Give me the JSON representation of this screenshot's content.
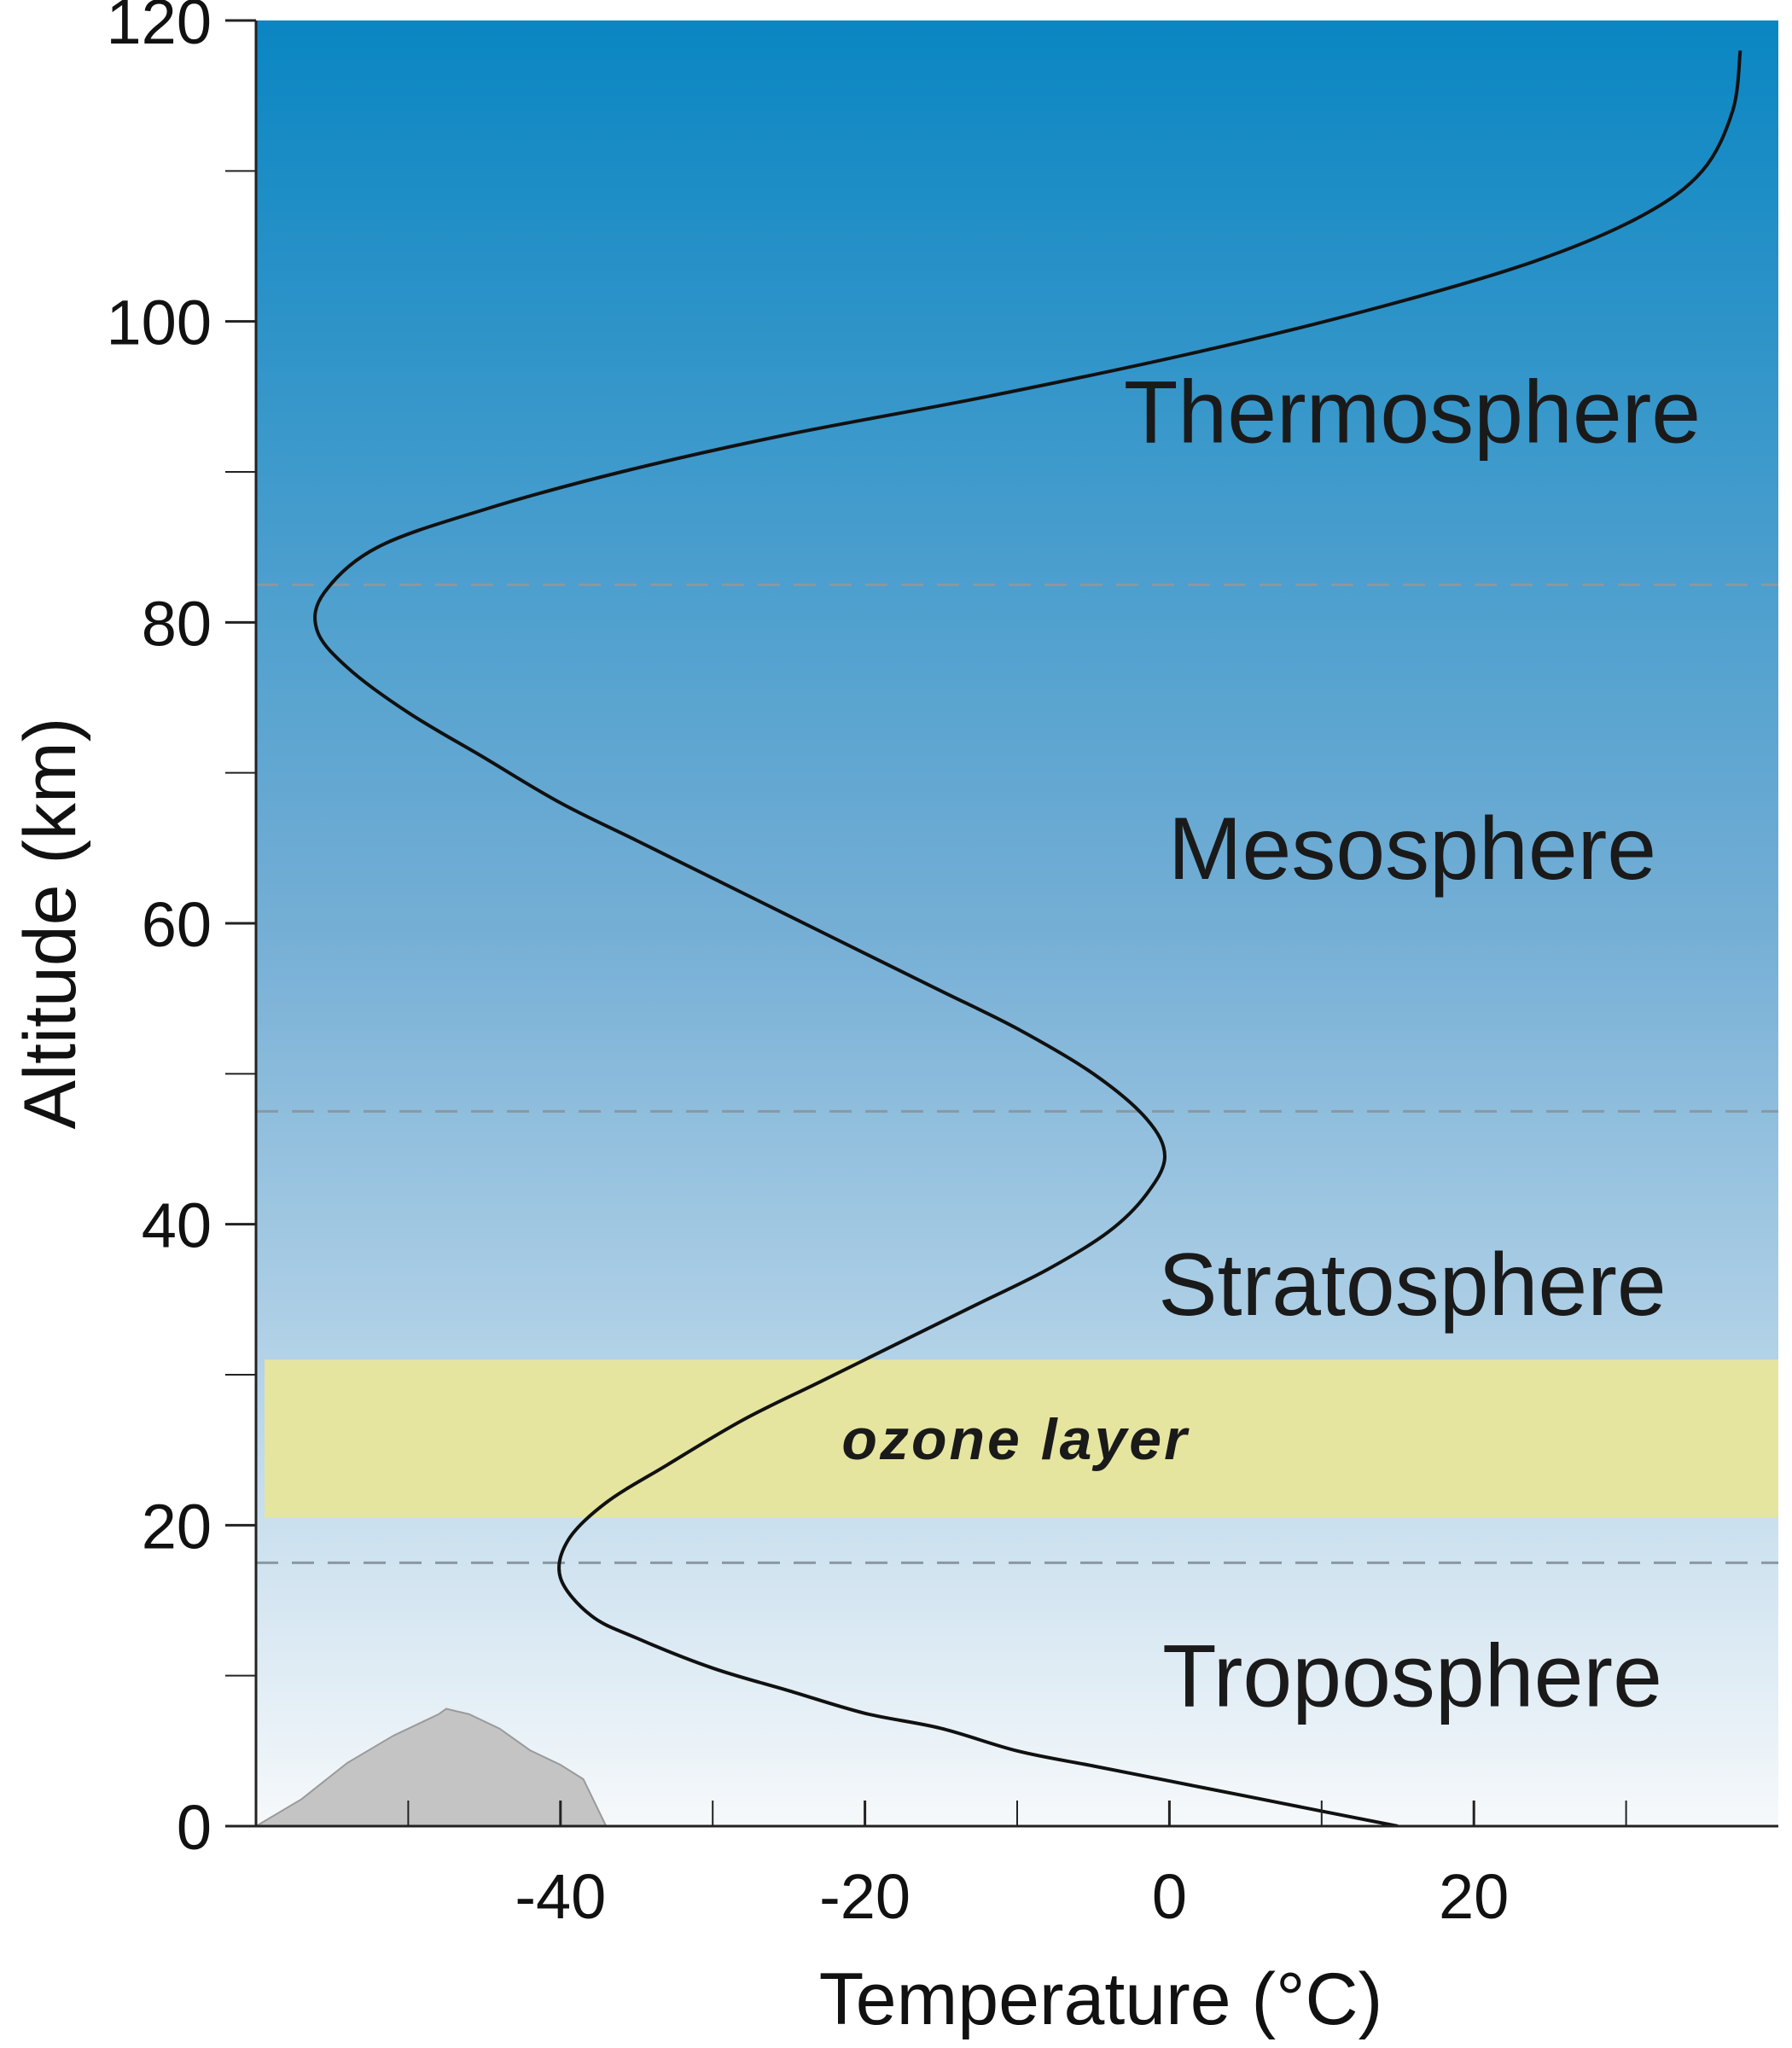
{
  "chart_data": {
    "type": "line",
    "xlabel": "Temperature (°C)",
    "ylabel": "Altitude (km)",
    "xlim": [
      -60,
      40
    ],
    "ylim": [
      0,
      120
    ],
    "x_ticks": [
      -40,
      -20,
      0,
      20
    ],
    "x_minor_ticks": [
      -50,
      -30,
      -10,
      10,
      30
    ],
    "y_ticks": [
      0,
      20,
      40,
      60,
      80,
      100,
      120
    ],
    "y_minor_ticks": [
      10,
      30,
      50,
      70,
      90,
      110
    ],
    "series": [
      {
        "x": [
          15,
          10,
          5,
          0,
          -5,
          -10,
          -15,
          -20,
          -25,
          -30,
          -35,
          -38,
          -40,
          -39.5,
          -37,
          -33,
          -28,
          -23,
          -18,
          -13,
          -8,
          -4,
          -1.5,
          -0.3,
          -1.5,
          -5,
          -10,
          -15,
          -20,
          -25,
          -30,
          -35,
          -40,
          -45,
          -50,
          -54,
          -56,
          -55.5,
          -52,
          -45,
          -36,
          -25,
          -12,
          2,
          14,
          24,
          31,
          35,
          37,
          37.5
        ],
        "y": [
          0,
          1,
          2,
          3,
          4,
          5,
          6.5,
          7.5,
          9,
          10.5,
          12.5,
          14,
          16.5,
          19,
          21.5,
          24,
          27,
          29.5,
          32,
          34.5,
          37,
          39.5,
          42,
          44.5,
          47,
          50,
          53,
          55.5,
          58,
          60.5,
          63,
          65.5,
          68,
          71,
          74,
          77,
          79.5,
          82,
          85,
          87.5,
          90,
          92.5,
          95,
          98,
          101,
          104,
          107,
          110,
          114,
          118
        ]
      }
    ],
    "boundaries_km": [
      17.5,
      47.5,
      82.5
    ],
    "ozone_layer_km": [
      20.5,
      31
    ],
    "layers": [
      {
        "name": "Thermosphere",
        "y": 94
      },
      {
        "name": "Mesosphere",
        "y": 65
      },
      {
        "name": "Stratosphere",
        "y": 36
      },
      {
        "name": "Troposphere",
        "y": 10
      }
    ],
    "ozone_label": "ozone layer",
    "colors": {
      "sky_top": "#0a86c2",
      "sky_mid": "#74aed5",
      "sky_bottom": "#f6f9fb",
      "ozone": "#e5e5a0",
      "curve": "#111111",
      "boundary": "#8a98a4",
      "mountain": "#c4c4c4"
    }
  }
}
